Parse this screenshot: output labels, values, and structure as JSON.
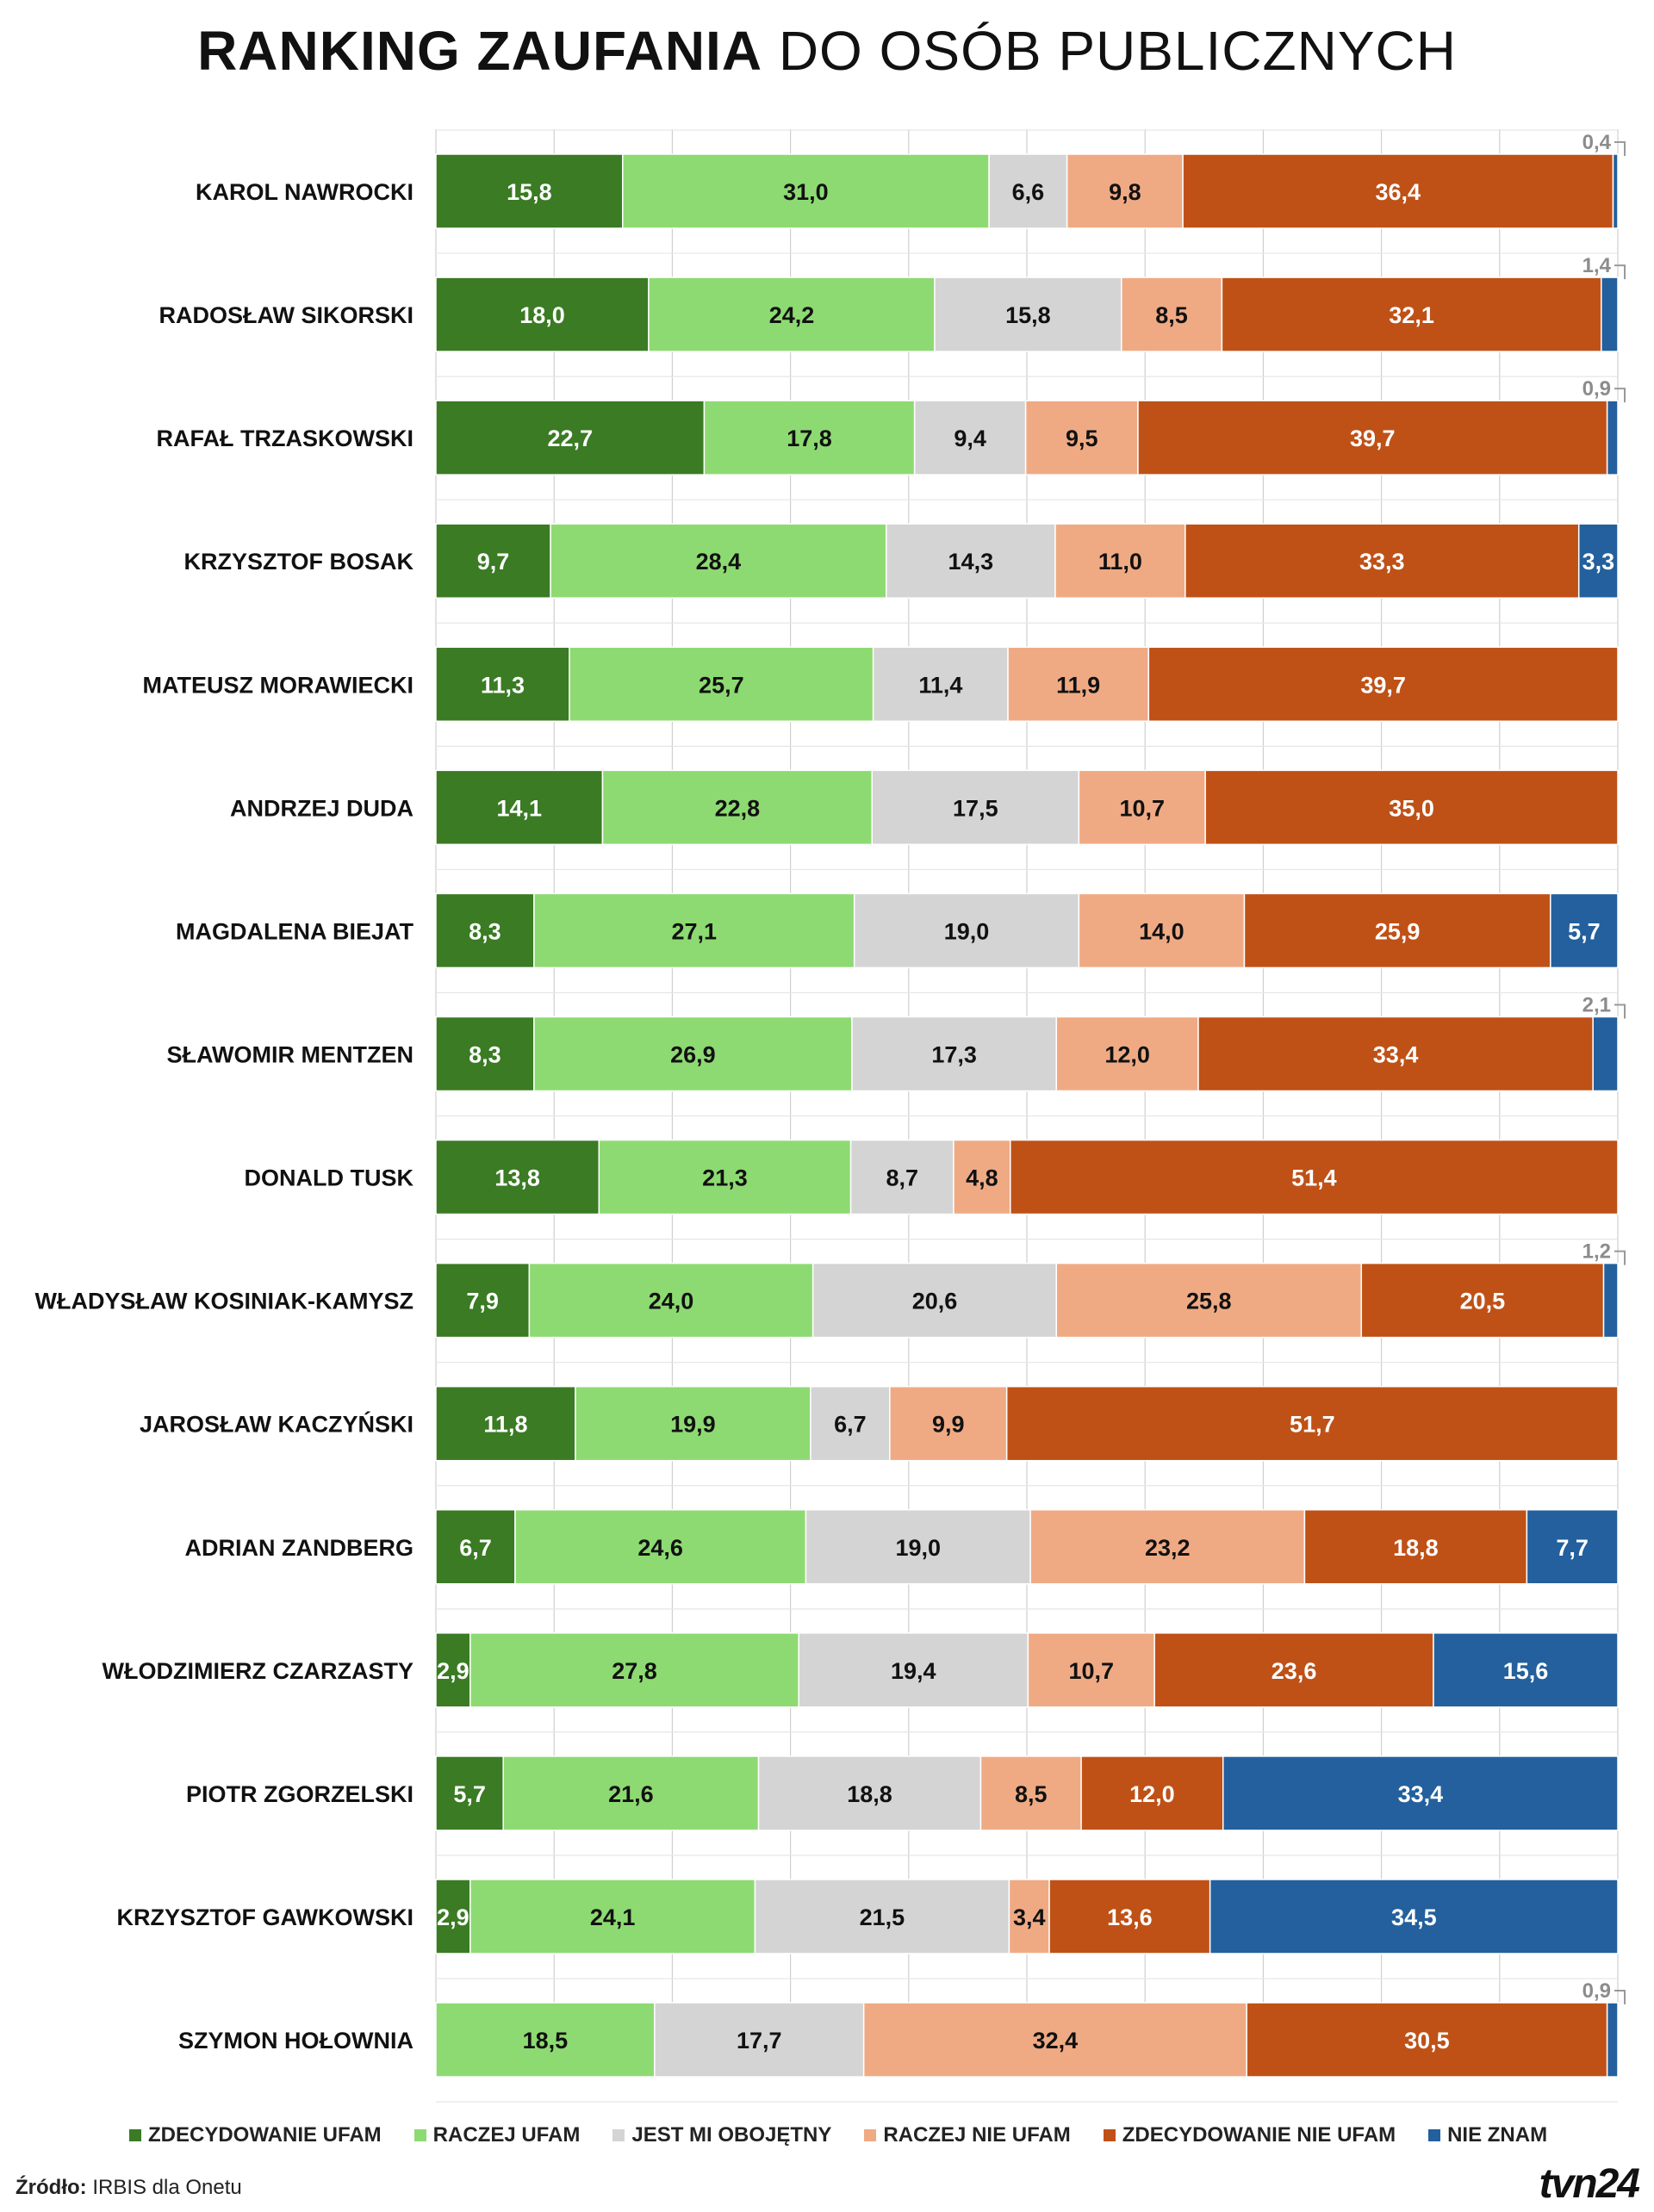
{
  "chart_data": {
    "type": "bar",
    "orientation": "horizontal",
    "stacked": true,
    "title_bold": "RANKING ZAUFANIA",
    "title_light": "DO OSÓB PUBLICZNYCH",
    "xlim": [
      0,
      100
    ],
    "grid": true,
    "categories": [
      "KAROL NAWROCKI",
      "RADOSŁAW SIKORSKI",
      "RAFAŁ TRZASKOWSKI",
      "KRZYSZTOF BOSAK",
      "MATEUSZ MORAWIECKI",
      "ANDRZEJ DUDA",
      "MAGDALENA BIEJAT",
      "SŁAWOMIR MENTZEN",
      "DONALD TUSK",
      "WŁADYSŁAW KOSINIAK-KAMYSZ",
      "JAROSŁAW KACZYŃSKI",
      "ADRIAN ZANDBERG",
      "WŁODZIMIERZ CZARZASTY",
      "PIOTR ZGORZELSKI",
      "KRZYSZTOF GAWKOWSKI",
      "SZYMON HOŁOWNIA"
    ],
    "series": [
      {
        "name": "ZDECYDOWANIE UFAM",
        "color": "#3a7b24",
        "text_color": "#ffffff",
        "values": [
          15.8,
          18.0,
          22.7,
          9.7,
          11.3,
          14.1,
          8.3,
          8.3,
          13.8,
          7.9,
          11.8,
          6.7,
          2.9,
          5.7,
          2.9,
          0
        ]
      },
      {
        "name": "RACZEJ UFAM",
        "color": "#8dda72",
        "text_color": "#111111",
        "values": [
          31.0,
          24.2,
          17.8,
          28.4,
          25.7,
          22.8,
          27.1,
          26.9,
          21.3,
          24.0,
          19.9,
          24.6,
          27.8,
          21.6,
          24.1,
          18.5
        ]
      },
      {
        "name": "JEST MI OBOJĘTNY",
        "color": "#d4d4d4",
        "text_color": "#111111",
        "values": [
          6.6,
          15.8,
          9.4,
          14.3,
          11.4,
          17.5,
          19.0,
          17.3,
          8.7,
          20.6,
          6.7,
          19.0,
          19.4,
          18.8,
          21.5,
          17.7
        ]
      },
      {
        "name": "RACZEJ NIE UFAM",
        "color": "#efaa84",
        "text_color": "#111111",
        "values": [
          9.8,
          8.5,
          9.5,
          11.0,
          11.9,
          10.7,
          14.0,
          12.0,
          4.8,
          25.8,
          9.9,
          23.2,
          10.7,
          8.5,
          3.4,
          32.4
        ]
      },
      {
        "name": "ZDECYDOWANIE NIE UFAM",
        "color": "#bf5117",
        "text_color": "#ffffff",
        "values": [
          36.4,
          32.1,
          39.7,
          33.3,
          39.7,
          35.0,
          25.9,
          33.4,
          51.4,
          20.5,
          51.7,
          18.8,
          23.6,
          12.0,
          13.6,
          30.5
        ]
      },
      {
        "name": "NIE ZNAM",
        "color": "#23609d",
        "text_color": "#ffffff",
        "values": [
          0.4,
          1.4,
          0.9,
          3.3,
          0,
          0,
          5.7,
          2.1,
          0,
          1.2,
          0,
          7.7,
          15.6,
          33.4,
          34.5,
          0.9
        ]
      }
    ],
    "legend_position": "bottom",
    "value_format": "comma-decimal"
  },
  "legend": [
    {
      "label": "ZDECYDOWANIE UFAM",
      "color": "#3a7b24"
    },
    {
      "label": "RACZEJ UFAM",
      "color": "#8dda72"
    },
    {
      "label": "JEST MI OBOJĘTNY",
      "color": "#d4d4d4"
    },
    {
      "label": "RACZEJ NIE UFAM",
      "color": "#efaa84"
    },
    {
      "label": "ZDECYDOWANIE NIE UFAM",
      "color": "#bf5117"
    },
    {
      "label": "NIE ZNAM",
      "color": "#23609d"
    }
  ],
  "source": {
    "key": "Źródło:",
    "value": "IRBIS dla Onetu"
  },
  "logo": "tvn24"
}
